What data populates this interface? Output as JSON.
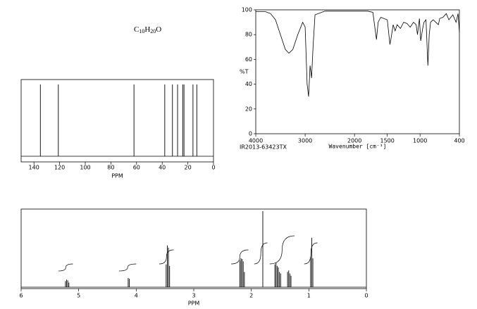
{
  "formula": [
    "C",
    "10",
    "H",
    "20",
    "O"
  ],
  "chart_data": [
    {
      "type": "stem",
      "xlabel": "PPM",
      "x": [
        135,
        121,
        62,
        38,
        32,
        28,
        24,
        23,
        16,
        13
      ],
      "xlim": [
        150,
        0
      ],
      "xticks": [
        140,
        120,
        100,
        80,
        60,
        40,
        20,
        0
      ],
      "color": "#000000"
    },
    {
      "type": "line",
      "xlabel": "Wavenumber [cm⁻¹]",
      "ylabel": "%T",
      "note": "IR2013-63423TX",
      "x": [
        4000,
        3800,
        3700,
        3600,
        3500,
        3400,
        3330,
        3250,
        3150,
        3050,
        3000,
        2960,
        2930,
        2900,
        2870,
        2840,
        2800,
        2600,
        2000,
        1800,
        1720,
        1675,
        1665,
        1640,
        1600,
        1500,
        1460,
        1440,
        1410,
        1380,
        1350,
        1300,
        1250,
        1200,
        1150,
        1100,
        1060,
        1040,
        1010,
        990,
        960,
        940,
        910,
        880,
        860,
        840,
        800,
        720,
        700,
        650,
        600,
        560,
        500,
        450,
        420,
        400
      ],
      "values": [
        98.5,
        98.5,
        97,
        92,
        80,
        68,
        65,
        68,
        80,
        90,
        86,
        40,
        30,
        55,
        45,
        70,
        96,
        99,
        99,
        99,
        98,
        80,
        76,
        90,
        94,
        92,
        72,
        78,
        88,
        83,
        88,
        85,
        90,
        89,
        86,
        90,
        88,
        80,
        93,
        75,
        85,
        90,
        92,
        55,
        80,
        90,
        92,
        88,
        93,
        94,
        97,
        92,
        96,
        90,
        97,
        82
      ],
      "xlim": [
        4000,
        400
      ],
      "x_break": 2000,
      "xticks": [
        4000,
        3000,
        2000,
        1500,
        1000,
        400
      ],
      "ylim": [
        0,
        100
      ],
      "yticks": [
        0,
        20,
        40,
        60,
        80,
        100
      ],
      "color": "#000000"
    },
    {
      "type": "stem",
      "xlabel": "PPM",
      "x": [
        5.23,
        5.21,
        5.19,
        5.17,
        4.14,
        4.12,
        3.48,
        3.46,
        3.44,
        3.42,
        2.2,
        2.18,
        2.16,
        2.14,
        2.12,
        1.8,
        1.59,
        1.57,
        1.55,
        1.53,
        1.51,
        1.49,
        1.37,
        1.35,
        1.33,
        1.31,
        0.97,
        0.95,
        0.93
      ],
      "values": [
        8,
        10,
        9,
        6,
        12,
        11,
        30,
        55,
        52,
        28,
        35,
        38,
        37,
        34,
        20,
        100,
        30,
        32,
        28,
        26,
        20,
        18,
        20,
        22,
        18,
        15,
        40,
        65,
        38
      ],
      "xlim": [
        6,
        0
      ],
      "ylim": [
        0,
        100
      ],
      "xticks": [
        6,
        5,
        4,
        3,
        2,
        1,
        0
      ],
      "color": "#000000",
      "integrals": {
        "ranges": [
          [
            5.35,
            5.1
          ],
          [
            4.3,
            4.0
          ],
          [
            3.6,
            3.35
          ],
          [
            2.35,
            2.05
          ],
          [
            1.95,
            1.72
          ],
          [
            1.68,
            1.25
          ],
          [
            1.08,
            0.85
          ]
        ],
        "values": [
          1,
          1,
          2,
          2,
          3,
          4,
          3
        ]
      }
    }
  ]
}
